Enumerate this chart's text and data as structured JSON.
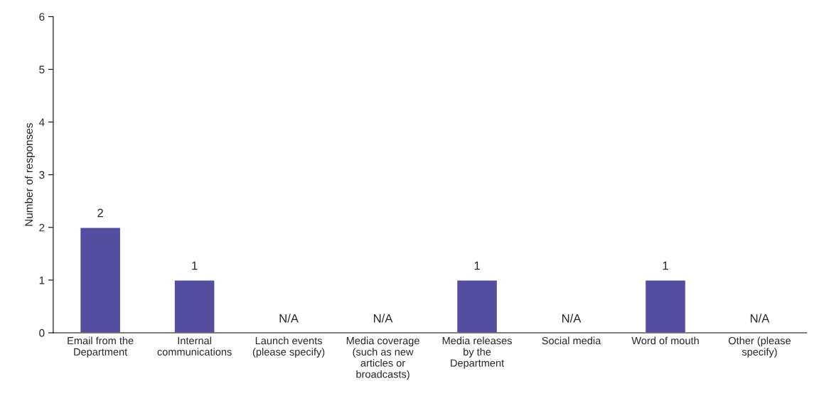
{
  "chart_data": {
    "type": "bar",
    "ylabel": "Number of responses",
    "categories": [
      "Email from the\nDepartment",
      "Internal\ncommunications",
      "Launch events\n(please specify)",
      "Media coverage\n(such as new\narticles or\nbroadcasts)",
      "Media releases\nby the\nDepartment",
      "Social media",
      "Word of mouth",
      "Other (please\nspecify)"
    ],
    "values": [
      2,
      1,
      null,
      null,
      1,
      null,
      1,
      null
    ],
    "value_labels": [
      "2",
      "1",
      "N/A",
      "N/A",
      "1",
      "N/A",
      "1",
      "N/A"
    ],
    "color": "#534ea0",
    "ylim": [
      0,
      6
    ],
    "yticks": [
      0,
      1,
      2,
      3,
      4,
      5,
      6
    ],
    "grid": false,
    "legend": false
  }
}
